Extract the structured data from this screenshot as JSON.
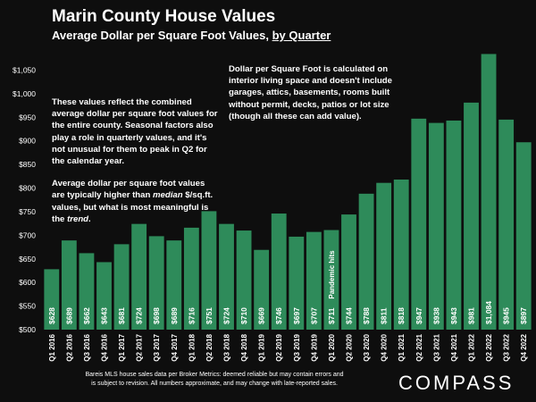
{
  "header": {
    "title": "Marin County House Values",
    "subtitle_prefix": "Average Dollar per Square Foot Values, ",
    "subtitle_link": "by Quarter"
  },
  "notes": {
    "left_p1": "These values reflect the combined average dollar per square foot values for the entire county. Seasonal factors also play a role in quarterly values, and it's not unusual for them to peak in Q2 for the calendar year.",
    "left_p2_before": "Average dollar per square foot values are typically higher than ",
    "left_p2_em1": "median",
    "left_p2_mid": " $/sq.ft. values, but what is most meaningful is the ",
    "left_p2_em2": "trend",
    "left_p2_after": ".",
    "right": "Dollar per Square Foot is calculated on interior living space and doesn't include garages, attics, basements, rooms built without permit, decks, patios or lot size (though all these can add value)."
  },
  "footer": {
    "line1": "Bareis MLS house sales data per Broker Metrics:  deemed reliable but may contain errors and",
    "line2": "is subject to revision. All numbers approximate, and may change with late-reported sales."
  },
  "logo": "COMPASS",
  "colors": {
    "background": "#0e0e0e",
    "bar": "#2e8b5a",
    "text": "#ffffff"
  },
  "chart_data": {
    "type": "bar",
    "title": "Marin County House Values",
    "subtitle": "Average Dollar per Square Foot Values, by Quarter",
    "categories": [
      "Q1 2016",
      "Q2 2016",
      "Q3 2016",
      "Q4 2016",
      "Q1 2017",
      "Q2 2017",
      "Q3 2017",
      "Q4 2017",
      "Q1 2018",
      "Q2 2018",
      "Q3 2018",
      "Q4 2018",
      "Q1 2019",
      "Q2 2019",
      "Q3 2019",
      "Q4 2019",
      "Q1 2020",
      "Q2 2020",
      "Q3 2020",
      "Q4 2020",
      "Q1 2021",
      "Q2 2021",
      "Q3 2021",
      "Q4 2021",
      "Q1 2022",
      "Q2 2022",
      "Q3 2022",
      "Q4 2022"
    ],
    "values": [
      628,
      689,
      662,
      643,
      681,
      724,
      698,
      689,
      716,
      751,
      724,
      710,
      669,
      746,
      697,
      707,
      711,
      744,
      788,
      811,
      818,
      947,
      938,
      943,
      981,
      1084,
      945,
      897
    ],
    "value_labels": [
      "$628",
      "$689",
      "$662",
      "$643",
      "$681",
      "$724",
      "$698",
      "$689",
      "$716",
      "$751",
      "$724",
      "$710",
      "$669",
      "$746",
      "$697",
      "$707",
      "$711",
      "$744",
      "$788",
      "$811",
      "$818",
      "$947",
      "$938",
      "$943",
      "$981",
      "$1,084",
      "$945",
      "$897"
    ],
    "ylim": [
      500,
      1100
    ],
    "yticks": [
      500,
      550,
      600,
      650,
      700,
      750,
      800,
      850,
      900,
      950,
      1000,
      1050
    ],
    "ytick_labels": [
      "$500",
      "$550",
      "$600",
      "$650",
      "$700",
      "$750",
      "$800",
      "$850",
      "$900",
      "$950",
      "$1,000",
      "$1,050"
    ],
    "annotations": [
      {
        "category": "Q1 2020",
        "text": "Pandemic hits"
      }
    ],
    "grid": false,
    "legend": "none"
  }
}
